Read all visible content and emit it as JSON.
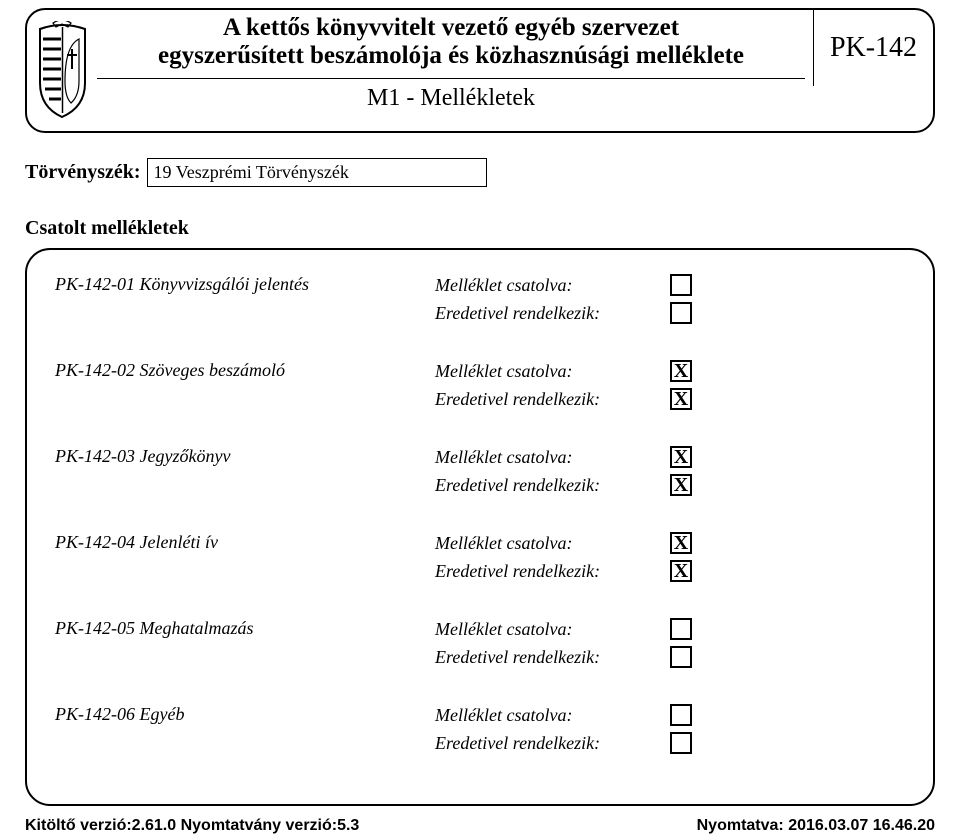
{
  "colors": {
    "fg": "#000000",
    "bg": "#ffffff"
  },
  "header": {
    "title_line1": "A kettős könyvvitelt vezető egyéb szervezet",
    "title_line2": "egyszerűsített beszámolója és közhasznúsági melléklete",
    "subtitle": "M1 - Mellékletek",
    "code": "PK-142"
  },
  "court": {
    "label": "Törvényszék:",
    "value": "19 Veszprémi Törvényszék"
  },
  "section_title": "Csatolt mellékletek",
  "labels": {
    "attached": "Melléklet csatolva:",
    "original": "Eredetivel rendelkezik:"
  },
  "check_glyph": "X",
  "attachments": [
    {
      "name": "PK-142-01 Könyvvizsgálói jelentés",
      "attached": false,
      "original": false
    },
    {
      "name": "PK-142-02 Szöveges beszámoló",
      "attached": true,
      "original": true
    },
    {
      "name": "PK-142-03 Jegyzőkönyv",
      "attached": true,
      "original": true
    },
    {
      "name": "PK-142-04 Jelenléti ív",
      "attached": true,
      "original": true
    },
    {
      "name": "PK-142-05 Meghatalmazás",
      "attached": false,
      "original": false
    },
    {
      "name": "PK-142-06 Egyéb",
      "attached": false,
      "original": false
    }
  ],
  "footer": {
    "left": "Kitöltő verzió:2.61.0 Nyomtatvány verzió:5.3",
    "right": "Nyomtatva: 2016.03.07 16.46.20"
  }
}
